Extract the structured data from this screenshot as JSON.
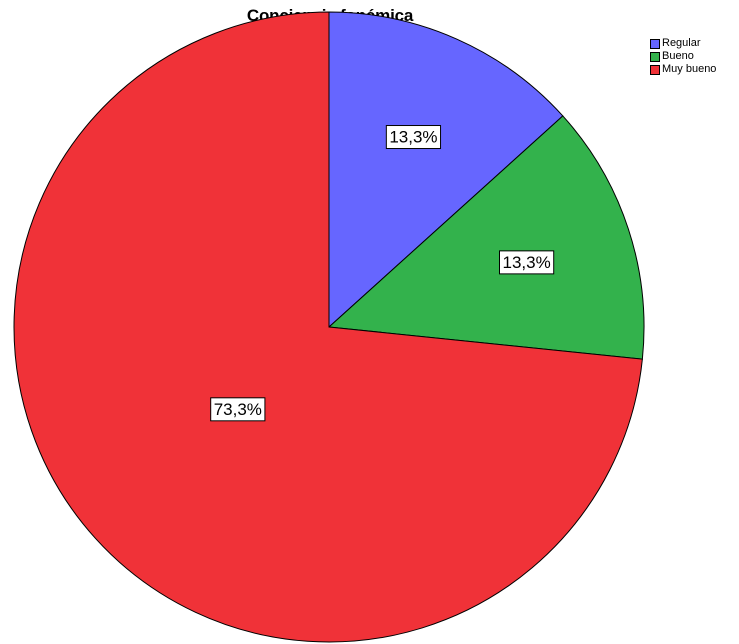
{
  "chart_data": {
    "type": "pie",
    "title": "Conciencia fonémica",
    "categories": [
      "Regular",
      "Bueno",
      "Muy bueno"
    ],
    "values": [
      13.3,
      13.3,
      73.3
    ],
    "labels": [
      "13,3%",
      "13,3%",
      "73,3%"
    ],
    "colors": [
      "#6666ff",
      "#33b24c",
      "#f03238"
    ],
    "legend_position": "top-right",
    "start_angle": "12 o'clock",
    "direction": "clockwise"
  }
}
